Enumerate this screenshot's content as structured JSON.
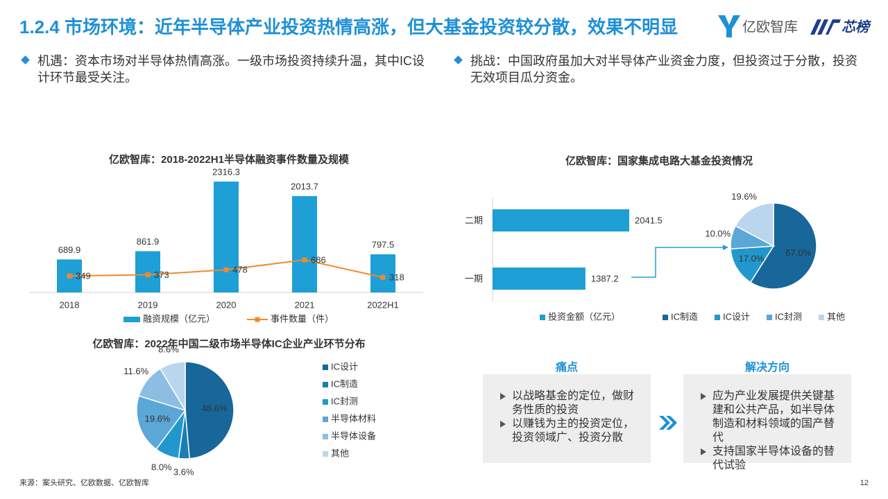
{
  "header": {
    "title": "1.2.4 市场环境：近年半导体产业投资热情高涨，但大基金投资较分散，效果不明显",
    "logo_text": "亿欧智库",
    "logo_text_2": "芯榜"
  },
  "bullets": [
    "机遇：资本市场对半导体热情高涨。一级市场投资持续升温，其中IC设计环节最受关注。",
    "挑战：中国政府虽加大对半导体产业资金力度，但投资过于分散，投资无效项目瓜分资金。"
  ],
  "chart_data": [
    {
      "type": "bar",
      "title": "亿欧智库：2018-2022H1半导体融资事件数量及规模",
      "categories": [
        "2018",
        "2019",
        "2020",
        "2021",
        "2022H1"
      ],
      "series": [
        {
          "name": "融资规模（亿元）",
          "color": "#1e9fd6",
          "values": [
            689.9,
            861.9,
            2316.3,
            2013.7,
            797.5
          ]
        },
        {
          "name": "事件数量（件）",
          "color": "#ef8a2c",
          "type": "line",
          "axis": "y2",
          "values": [
            349,
            373,
            478,
            686,
            318
          ]
        }
      ]
    },
    {
      "type": "pie",
      "title": "亿欧智库：2022年中国二级市场半导体IC企业产业环节分布",
      "categories": [
        "IC设计",
        "IC制造",
        "IC封测",
        "半导体材料",
        "半导体设备",
        "其他"
      ],
      "values": [
        48.6,
        3.6,
        8.0,
        19.6,
        11.6,
        8.6
      ],
      "value_labels": [
        "48.6%",
        "3.6%",
        "8.0%",
        "19.6%",
        "11.6%",
        "8.6%"
      ],
      "colors": [
        "#17679a",
        "#1a7db3",
        "#2198cd",
        "#5aa7d8",
        "#8dbde3",
        "#bad6ec"
      ]
    },
    {
      "type": "barh",
      "title": "亿欧智库：国家集成电路大基金投资情况",
      "categories": [
        "二期",
        "一期"
      ],
      "series": [
        {
          "name": "投资金额（亿元）",
          "color": "#1e9fd6",
          "values": [
            2041.5,
            1387.2
          ]
        }
      ]
    },
    {
      "type": "pie",
      "categories": [
        "IC制造",
        "IC设计",
        "IC封测",
        "其他"
      ],
      "values": [
        67.0,
        17.0,
        10.0,
        19.6
      ],
      "value_labels": [
        "67.0%",
        "17.0%",
        "10.0%",
        "19.6%"
      ],
      "colors": [
        "#17679a",
        "#2198cd",
        "#5aa7d8",
        "#bad6ec"
      ]
    }
  ],
  "panels": [
    {
      "title": "痛点",
      "items": [
        "以战略基金的定位，做财务性质的投资",
        "以赚钱为主的投资定位，投资领域广、投资分散"
      ]
    },
    {
      "title": "解决方向",
      "items": [
        "应为产业发展提供关键基建和公共产品，如半导体制造和材料领域的国产替代",
        "支持国家半导体设备的替代试验"
      ]
    }
  ],
  "source": "来源：案头研究、亿欧数据、亿欧智库",
  "page_number": 12
}
